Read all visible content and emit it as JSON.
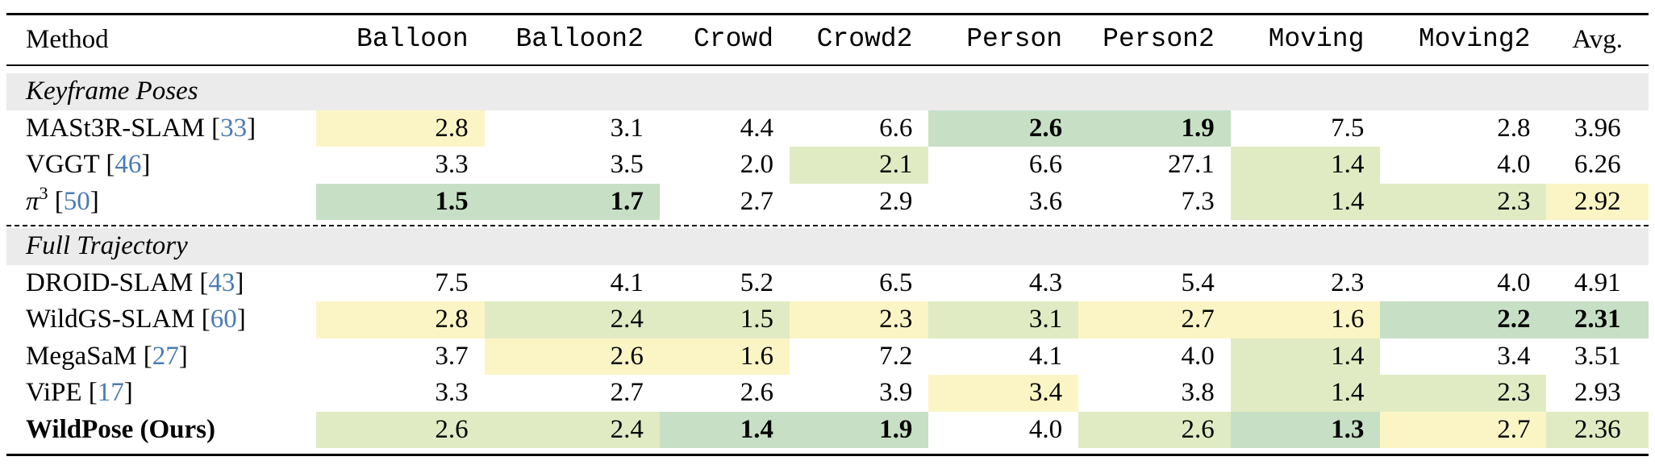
{
  "header": {
    "method": "Method",
    "columns": [
      "Balloon",
      "Balloon2",
      "Crowd",
      "Crowd2",
      "Person",
      "Person2",
      "Moving",
      "Moving2"
    ],
    "avg": "Avg."
  },
  "sections": [
    {
      "title": "Keyframe Poses",
      "rows": [
        {
          "name": "MASt3R-SLAM",
          "ref": "33",
          "values": [
            "2.8",
            "3.1",
            "4.4",
            "6.6",
            "2.6",
            "1.9",
            "7.5",
            "2.8"
          ],
          "avg": "3.96",
          "shade": [
            "y",
            "",
            "",
            "",
            "g",
            "g",
            "",
            ""
          ],
          "bold": [
            false,
            false,
            false,
            false,
            true,
            true,
            false,
            false
          ],
          "avg_shade": "",
          "avg_bold": false
        },
        {
          "name": "VGGT",
          "ref": "46",
          "values": [
            "3.3",
            "3.5",
            "2.0",
            "2.1",
            "6.6",
            "27.1",
            "1.4",
            "4.0"
          ],
          "avg": "6.26",
          "shade": [
            "",
            "",
            "",
            "l",
            "",
            "",
            "l",
            ""
          ],
          "bold": [
            false,
            false,
            false,
            false,
            false,
            false,
            false,
            false
          ],
          "avg_shade": "",
          "avg_bold": false
        },
        {
          "name": "π",
          "name_sup": "3",
          "ref": "50",
          "values": [
            "1.5",
            "1.7",
            "2.7",
            "2.9",
            "3.6",
            "7.3",
            "1.4",
            "2.3"
          ],
          "avg": "2.92",
          "shade": [
            "g",
            "g",
            "",
            "",
            "",
            "",
            "l",
            "l"
          ],
          "bold": [
            true,
            true,
            false,
            false,
            false,
            false,
            false,
            false
          ],
          "avg_shade": "y",
          "avg_bold": false
        }
      ]
    },
    {
      "title": "Full Trajectory",
      "rows": [
        {
          "name": "DROID-SLAM",
          "ref": "43",
          "values": [
            "7.5",
            "4.1",
            "5.2",
            "6.5",
            "4.3",
            "5.4",
            "2.3",
            "4.0"
          ],
          "avg": "4.91",
          "shade": [
            "",
            "",
            "",
            "",
            "",
            "",
            "",
            ""
          ],
          "bold": [
            false,
            false,
            false,
            false,
            false,
            false,
            false,
            false
          ],
          "avg_shade": "",
          "avg_bold": false
        },
        {
          "name": "WildGS-SLAM",
          "ref": "60",
          "values": [
            "2.8",
            "2.4",
            "1.5",
            "2.3",
            "3.1",
            "2.7",
            "1.6",
            "2.2"
          ],
          "avg": "2.31",
          "shade": [
            "y",
            "l",
            "l",
            "y",
            "l",
            "y",
            "y",
            "g"
          ],
          "bold": [
            false,
            false,
            false,
            false,
            false,
            false,
            false,
            true
          ],
          "avg_shade": "g",
          "avg_bold": true
        },
        {
          "name": "MegaSaM",
          "ref": "27",
          "values": [
            "3.7",
            "2.6",
            "1.6",
            "7.2",
            "4.1",
            "4.0",
            "1.4",
            "3.4"
          ],
          "avg": "3.51",
          "shade": [
            "",
            "y",
            "y",
            "",
            "",
            "",
            "l",
            ""
          ],
          "bold": [
            false,
            false,
            false,
            false,
            false,
            false,
            false,
            false
          ],
          "avg_shade": "",
          "avg_bold": false
        },
        {
          "name": "ViPE",
          "ref": "17",
          "values": [
            "3.3",
            "2.7",
            "2.6",
            "3.9",
            "3.4",
            "3.8",
            "1.4",
            "2.3"
          ],
          "avg": "2.93",
          "shade": [
            "",
            "",
            "",
            "",
            "y",
            "",
            "l",
            "l"
          ],
          "bold": [
            false,
            false,
            false,
            false,
            false,
            false,
            false,
            false
          ],
          "avg_shade": "",
          "avg_bold": false
        },
        {
          "name": "WildPose (Ours)",
          "ref": "",
          "values": [
            "2.6",
            "2.4",
            "1.4",
            "1.9",
            "4.0",
            "2.6",
            "1.3",
            "2.7"
          ],
          "avg": "2.36",
          "shade": [
            "l",
            "l",
            "g",
            "g",
            "",
            "l",
            "g",
            "y"
          ],
          "bold": [
            false,
            false,
            true,
            true,
            false,
            false,
            true,
            false
          ],
          "avg_shade": "l",
          "avg_bold": false,
          "name_bold": true
        }
      ]
    }
  ],
  "colors": {
    "first": "#c7e0c5",
    "second": "#e0ebc3",
    "third": "#fbf5c6",
    "section_bg": "#ebebeb",
    "cite": "#4b7bb4"
  }
}
